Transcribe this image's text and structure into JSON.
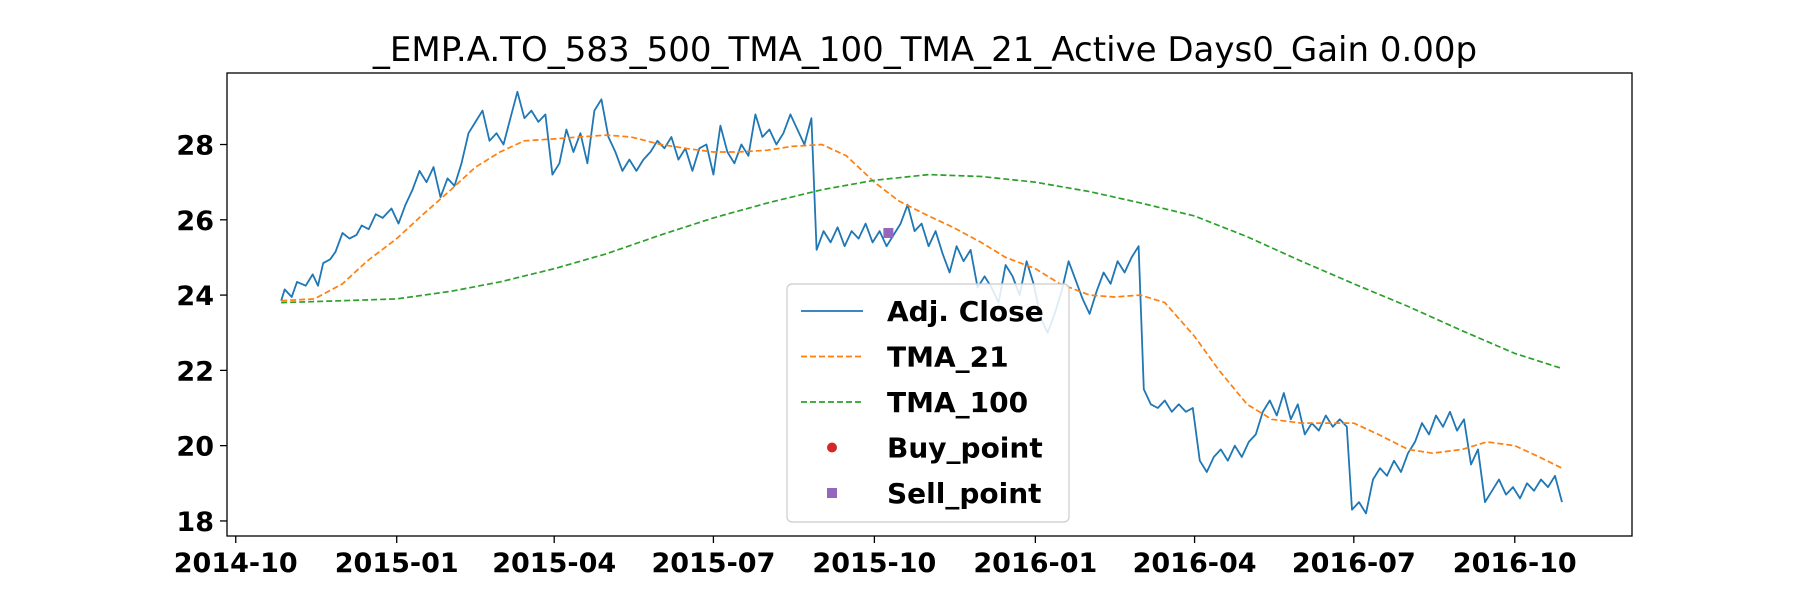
{
  "chart_data": {
    "type": "line",
    "title": "_EMP.A.TO_583_500_TMA_100_TMA_21_Active Days0_Gain   0.00p",
    "xlabel": "",
    "ylabel": "",
    "x_ticks": [
      "2014-10",
      "2015-01",
      "2015-04",
      "2015-07",
      "2015-10",
      "2016-01",
      "2016-04",
      "2016-07",
      "2016-10"
    ],
    "y_ticks": [
      18,
      20,
      22,
      24,
      26,
      28
    ],
    "xlim": [
      "2014-09-26",
      "2016-12-07"
    ],
    "ylim": [
      17.6,
      29.9
    ],
    "grid": false,
    "legend_position": "center",
    "series": [
      {
        "name": "Adj. Close",
        "style": "solid",
        "color": "#1f77b4",
        "points": [
          [
            "2014-10-27",
            23.85
          ],
          [
            "2014-10-29",
            24.15
          ],
          [
            "2014-11-02",
            23.95
          ],
          [
            "2014-11-05",
            24.35
          ],
          [
            "2014-11-10",
            24.25
          ],
          [
            "2014-11-14",
            24.55
          ],
          [
            "2014-11-17",
            24.25
          ],
          [
            "2014-11-20",
            24.85
          ],
          [
            "2014-11-24",
            24.95
          ],
          [
            "2014-11-27",
            25.15
          ],
          [
            "2014-12-01",
            25.65
          ],
          [
            "2014-12-05",
            25.5
          ],
          [
            "2014-12-09",
            25.6
          ],
          [
            "2014-12-12",
            25.85
          ],
          [
            "2014-12-16",
            25.75
          ],
          [
            "2014-12-20",
            26.15
          ],
          [
            "2014-12-24",
            26.05
          ],
          [
            "2014-12-29",
            26.3
          ],
          [
            "2015-01-02",
            25.9
          ],
          [
            "2015-01-06",
            26.4
          ],
          [
            "2015-01-10",
            26.8
          ],
          [
            "2015-01-14",
            27.3
          ],
          [
            "2015-01-18",
            27.0
          ],
          [
            "2015-01-22",
            27.4
          ],
          [
            "2015-01-26",
            26.6
          ],
          [
            "2015-01-30",
            27.1
          ],
          [
            "2015-02-03",
            26.9
          ],
          [
            "2015-02-07",
            27.5
          ],
          [
            "2015-02-11",
            28.3
          ],
          [
            "2015-02-15",
            28.6
          ],
          [
            "2015-02-19",
            28.9
          ],
          [
            "2015-02-23",
            28.1
          ],
          [
            "2015-02-27",
            28.3
          ],
          [
            "2015-03-03",
            28.0
          ],
          [
            "2015-03-07",
            28.7
          ],
          [
            "2015-03-11",
            29.4
          ],
          [
            "2015-03-15",
            28.7
          ],
          [
            "2015-03-19",
            28.9
          ],
          [
            "2015-03-23",
            28.6
          ],
          [
            "2015-03-27",
            28.8
          ],
          [
            "2015-03-31",
            27.2
          ],
          [
            "2015-04-04",
            27.5
          ],
          [
            "2015-04-08",
            28.4
          ],
          [
            "2015-04-12",
            27.8
          ],
          [
            "2015-04-16",
            28.3
          ],
          [
            "2015-04-20",
            27.5
          ],
          [
            "2015-04-24",
            28.9
          ],
          [
            "2015-04-28",
            29.2
          ],
          [
            "2015-05-02",
            28.2
          ],
          [
            "2015-05-06",
            27.8
          ],
          [
            "2015-05-10",
            27.3
          ],
          [
            "2015-05-14",
            27.6
          ],
          [
            "2015-05-18",
            27.3
          ],
          [
            "2015-05-22",
            27.6
          ],
          [
            "2015-05-26",
            27.8
          ],
          [
            "2015-05-30",
            28.1
          ],
          [
            "2015-06-03",
            27.9
          ],
          [
            "2015-06-07",
            28.2
          ],
          [
            "2015-06-11",
            27.6
          ],
          [
            "2015-06-15",
            27.9
          ],
          [
            "2015-06-19",
            27.3
          ],
          [
            "2015-06-23",
            27.9
          ],
          [
            "2015-06-27",
            28.0
          ],
          [
            "2015-07-01",
            27.2
          ],
          [
            "2015-07-05",
            28.5
          ],
          [
            "2015-07-09",
            27.8
          ],
          [
            "2015-07-13",
            27.5
          ],
          [
            "2015-07-17",
            28.0
          ],
          [
            "2015-07-21",
            27.7
          ],
          [
            "2015-07-25",
            28.8
          ],
          [
            "2015-07-29",
            28.2
          ],
          [
            "2015-08-02",
            28.4
          ],
          [
            "2015-08-06",
            28.0
          ],
          [
            "2015-08-10",
            28.3
          ],
          [
            "2015-08-14",
            28.8
          ],
          [
            "2015-08-18",
            28.4
          ],
          [
            "2015-08-22",
            28.0
          ],
          [
            "2015-08-26",
            28.7
          ],
          [
            "2015-08-29",
            25.2
          ],
          [
            "2015-09-02",
            25.7
          ],
          [
            "2015-09-06",
            25.4
          ],
          [
            "2015-09-10",
            25.8
          ],
          [
            "2015-09-14",
            25.3
          ],
          [
            "2015-09-18",
            25.7
          ],
          [
            "2015-09-22",
            25.5
          ],
          [
            "2015-09-26",
            25.9
          ],
          [
            "2015-09-30",
            25.4
          ],
          [
            "2015-10-04",
            25.7
          ],
          [
            "2015-10-08",
            25.3
          ],
          [
            "2015-10-12",
            25.6
          ],
          [
            "2015-10-16",
            25.9
          ],
          [
            "2015-10-20",
            26.4
          ],
          [
            "2015-10-24",
            25.7
          ],
          [
            "2015-10-28",
            25.9
          ],
          [
            "2015-11-01",
            25.3
          ],
          [
            "2015-11-05",
            25.7
          ],
          [
            "2015-11-09",
            25.1
          ],
          [
            "2015-11-13",
            24.6
          ],
          [
            "2015-11-17",
            25.3
          ],
          [
            "2015-11-21",
            24.9
          ],
          [
            "2015-11-25",
            25.2
          ],
          [
            "2015-11-29",
            24.2
          ],
          [
            "2015-12-03",
            24.5
          ],
          [
            "2015-12-07",
            24.2
          ],
          [
            "2015-12-11",
            23.8
          ],
          [
            "2015-12-15",
            24.8
          ],
          [
            "2015-12-19",
            24.5
          ],
          [
            "2015-12-23",
            24.0
          ],
          [
            "2015-12-27",
            24.9
          ],
          [
            "2015-12-31",
            24.3
          ],
          [
            "2016-01-04",
            23.4
          ],
          [
            "2016-01-08",
            23.0
          ],
          [
            "2016-01-12",
            23.5
          ],
          [
            "2016-01-16",
            24.1
          ],
          [
            "2016-01-20",
            24.9
          ],
          [
            "2016-01-24",
            24.4
          ],
          [
            "2016-01-28",
            23.9
          ],
          [
            "2016-02-01",
            23.5
          ],
          [
            "2016-02-05",
            24.1
          ],
          [
            "2016-02-09",
            24.6
          ],
          [
            "2016-02-13",
            24.3
          ],
          [
            "2016-02-17",
            24.9
          ],
          [
            "2016-02-21",
            24.6
          ],
          [
            "2016-02-25",
            25.0
          ],
          [
            "2016-02-29",
            25.3
          ],
          [
            "2016-03-03",
            21.5
          ],
          [
            "2016-03-07",
            21.1
          ],
          [
            "2016-03-11",
            21.0
          ],
          [
            "2016-03-15",
            21.2
          ],
          [
            "2016-03-19",
            20.9
          ],
          [
            "2016-03-23",
            21.1
          ],
          [
            "2016-03-27",
            20.9
          ],
          [
            "2016-03-31",
            21.0
          ],
          [
            "2016-04-04",
            19.6
          ],
          [
            "2016-04-08",
            19.3
          ],
          [
            "2016-04-12",
            19.7
          ],
          [
            "2016-04-16",
            19.9
          ],
          [
            "2016-04-20",
            19.6
          ],
          [
            "2016-04-24",
            20.0
          ],
          [
            "2016-04-28",
            19.7
          ],
          [
            "2016-05-02",
            20.1
          ],
          [
            "2016-05-06",
            20.3
          ],
          [
            "2016-05-10",
            20.9
          ],
          [
            "2016-05-14",
            21.2
          ],
          [
            "2016-05-18",
            20.8
          ],
          [
            "2016-05-22",
            21.4
          ],
          [
            "2016-05-26",
            20.7
          ],
          [
            "2016-05-30",
            21.1
          ],
          [
            "2016-06-03",
            20.3
          ],
          [
            "2016-06-07",
            20.6
          ],
          [
            "2016-06-11",
            20.4
          ],
          [
            "2016-06-15",
            20.8
          ],
          [
            "2016-06-19",
            20.5
          ],
          [
            "2016-06-23",
            20.7
          ],
          [
            "2016-06-27",
            20.5
          ],
          [
            "2016-06-30",
            18.3
          ],
          [
            "2016-07-04",
            18.5
          ],
          [
            "2016-07-08",
            18.2
          ],
          [
            "2016-07-12",
            19.1
          ],
          [
            "2016-07-16",
            19.4
          ],
          [
            "2016-07-20",
            19.2
          ],
          [
            "2016-07-24",
            19.6
          ],
          [
            "2016-07-28",
            19.3
          ],
          [
            "2016-08-01",
            19.8
          ],
          [
            "2016-08-05",
            20.1
          ],
          [
            "2016-08-09",
            20.6
          ],
          [
            "2016-08-13",
            20.3
          ],
          [
            "2016-08-17",
            20.8
          ],
          [
            "2016-08-21",
            20.5
          ],
          [
            "2016-08-25",
            20.9
          ],
          [
            "2016-08-29",
            20.4
          ],
          [
            "2016-09-02",
            20.7
          ],
          [
            "2016-09-06",
            19.5
          ],
          [
            "2016-09-10",
            19.9
          ],
          [
            "2016-09-14",
            18.5
          ],
          [
            "2016-09-18",
            18.8
          ],
          [
            "2016-09-22",
            19.1
          ],
          [
            "2016-09-26",
            18.7
          ],
          [
            "2016-09-30",
            18.9
          ],
          [
            "2016-10-04",
            18.6
          ],
          [
            "2016-10-08",
            19.0
          ],
          [
            "2016-10-12",
            18.8
          ],
          [
            "2016-10-16",
            19.1
          ],
          [
            "2016-10-20",
            18.9
          ],
          [
            "2016-10-24",
            19.2
          ],
          [
            "2016-10-28",
            18.5
          ]
        ]
      },
      {
        "name": "TMA_21",
        "style": "dashed",
        "color": "#ff7f0e",
        "points": [
          [
            "2014-10-27",
            23.85
          ],
          [
            "2014-11-15",
            23.9
          ],
          [
            "2014-12-01",
            24.3
          ],
          [
            "2014-12-15",
            24.9
          ],
          [
            "2015-01-01",
            25.5
          ],
          [
            "2015-01-15",
            26.1
          ],
          [
            "2015-02-01",
            26.8
          ],
          [
            "2015-02-15",
            27.4
          ],
          [
            "2015-03-01",
            27.8
          ],
          [
            "2015-03-15",
            28.1
          ],
          [
            "2015-04-01",
            28.15
          ],
          [
            "2015-04-15",
            28.2
          ],
          [
            "2015-05-01",
            28.25
          ],
          [
            "2015-05-15",
            28.2
          ],
          [
            "2015-06-01",
            28.0
          ],
          [
            "2015-06-15",
            27.9
          ],
          [
            "2015-07-01",
            27.8
          ],
          [
            "2015-07-15",
            27.8
          ],
          [
            "2015-08-01",
            27.85
          ],
          [
            "2015-08-15",
            27.95
          ],
          [
            "2015-09-01",
            28.0
          ],
          [
            "2015-09-15",
            27.7
          ],
          [
            "2015-10-01",
            27.0
          ],
          [
            "2015-10-15",
            26.5
          ],
          [
            "2015-11-01",
            26.1
          ],
          [
            "2015-11-15",
            25.8
          ],
          [
            "2015-12-01",
            25.4
          ],
          [
            "2015-12-15",
            25.0
          ],
          [
            "2016-01-01",
            24.7
          ],
          [
            "2016-01-15",
            24.3
          ],
          [
            "2016-02-01",
            24.0
          ],
          [
            "2016-02-15",
            23.95
          ],
          [
            "2016-03-01",
            24.0
          ],
          [
            "2016-03-15",
            23.8
          ],
          [
            "2016-04-01",
            22.9
          ],
          [
            "2016-04-15",
            22.0
          ],
          [
            "2016-05-01",
            21.1
          ],
          [
            "2016-05-15",
            20.7
          ],
          [
            "2016-06-01",
            20.6
          ],
          [
            "2016-06-15",
            20.6
          ],
          [
            "2016-07-01",
            20.6
          ],
          [
            "2016-07-15",
            20.3
          ],
          [
            "2016-08-01",
            19.9
          ],
          [
            "2016-08-15",
            19.8
          ],
          [
            "2016-09-01",
            19.9
          ],
          [
            "2016-09-15",
            20.1
          ],
          [
            "2016-10-01",
            20.0
          ],
          [
            "2016-10-15",
            19.7
          ],
          [
            "2016-10-28",
            19.4
          ]
        ]
      },
      {
        "name": "TMA_100",
        "style": "dashed",
        "color": "#2ca02c",
        "points": [
          [
            "2014-10-27",
            23.8
          ],
          [
            "2014-12-01",
            23.85
          ],
          [
            "2015-01-01",
            23.9
          ],
          [
            "2015-02-01",
            24.1
          ],
          [
            "2015-03-01",
            24.35
          ],
          [
            "2015-04-01",
            24.7
          ],
          [
            "2015-05-01",
            25.1
          ],
          [
            "2015-06-01",
            25.6
          ],
          [
            "2015-07-01",
            26.05
          ],
          [
            "2015-08-01",
            26.45
          ],
          [
            "2015-09-01",
            26.8
          ],
          [
            "2015-10-01",
            27.05
          ],
          [
            "2015-11-01",
            27.2
          ],
          [
            "2015-12-01",
            27.15
          ],
          [
            "2016-01-01",
            27.0
          ],
          [
            "2016-02-01",
            26.75
          ],
          [
            "2016-03-01",
            26.45
          ],
          [
            "2016-04-01",
            26.1
          ],
          [
            "2016-05-01",
            25.55
          ],
          [
            "2016-06-01",
            24.9
          ],
          [
            "2016-07-01",
            24.3
          ],
          [
            "2016-08-01",
            23.7
          ],
          [
            "2016-09-01",
            23.05
          ],
          [
            "2016-10-01",
            22.45
          ],
          [
            "2016-10-28",
            22.05
          ]
        ]
      },
      {
        "name": "Buy_point",
        "style": "marker-circle",
        "color": "#d62728",
        "points": []
      },
      {
        "name": "Sell_point",
        "style": "marker-square",
        "color": "#9467bd",
        "points": [
          [
            "2015-10-09",
            25.65
          ]
        ]
      }
    ]
  }
}
